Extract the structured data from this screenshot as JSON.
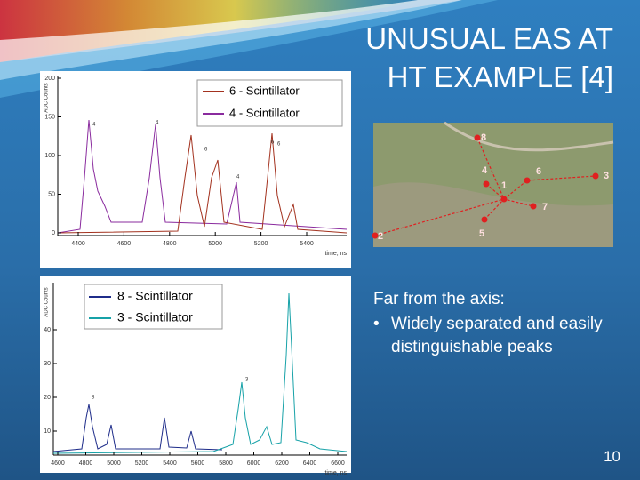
{
  "title": [
    "UNUSUAL EAS AT",
    "HT EXAMPLE [4]"
  ],
  "body": {
    "lead": "Far from the axis:",
    "bullets": [
      "Widely separated and easily distinguishable peaks"
    ]
  },
  "slide_number": "10",
  "figures": [
    {
      "y_label": "ADC Counts",
      "x_label": "time, ns",
      "yticks": [
        "0",
        "50",
        "100",
        "150",
        "200"
      ],
      "xticks": [
        "4400",
        "4600",
        "4800",
        "5000",
        "5200",
        "5400"
      ],
      "legend": [
        "6 - Scintillator",
        "4 - Scintillator"
      ],
      "peak_labels": [
        "4",
        "4",
        "6",
        "4",
        "6",
        "6"
      ]
    },
    {
      "y_label": "ADC Counts",
      "x_label": "time, ns",
      "yticks": [
        "10",
        "20",
        "30",
        "40"
      ],
      "xticks": [
        "4600",
        "4800",
        "5000",
        "5200",
        "5400",
        "5600",
        "5800",
        "6000",
        "6200",
        "6400",
        "6600"
      ],
      "legend": [
        "8 - Scintillator",
        "3 - Scintillator"
      ],
      "peak_labels": [
        "8",
        "3"
      ]
    }
  ],
  "map": {
    "labels": [
      "8",
      "4",
      "1",
      "6",
      "3",
      "7",
      "2",
      "5"
    ]
  }
}
